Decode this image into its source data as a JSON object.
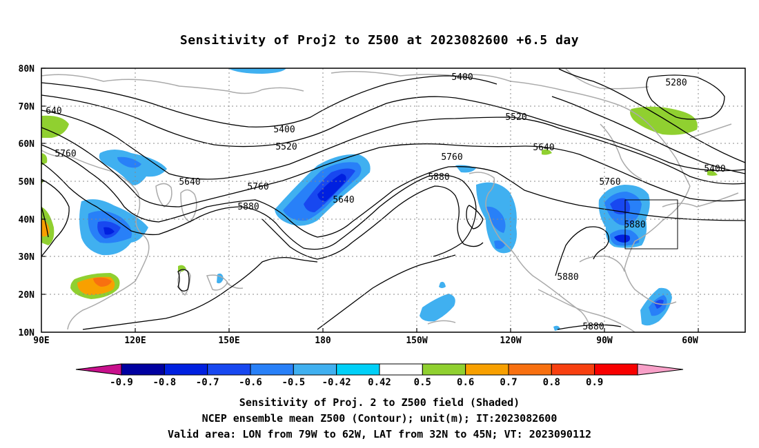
{
  "title": "Sensitivity of Proj2 to Z500 at 2023082600 +6.5 day",
  "map": {
    "lat_labels": [
      "80N",
      "70N",
      "60N",
      "50N",
      "40N",
      "30N",
      "20N",
      "10N"
    ],
    "lon_labels": [
      "90E",
      "120E",
      "150E",
      "180",
      "150W",
      "120W",
      "90W",
      "60W"
    ],
    "contour_labels": [
      "5400",
      "5280",
      "5520",
      "5400",
      "5520",
      "5640",
      "5400",
      "5760",
      "5760",
      "5880",
      "5640",
      "5640",
      "5760",
      "5880",
      "5760",
      "5880",
      "5880",
      "5880",
      "640"
    ],
    "colors": {
      "coast": "#aaaaaa",
      "contour": "#000000",
      "grid": "#888888"
    },
    "valid_area_box": "79W-62W, 32N-45N"
  },
  "colorbar": {
    "labels": [
      "-0.9",
      "-0.8",
      "-0.7",
      "-0.6",
      "-0.5",
      "-0.42",
      "0.42",
      "0.5",
      "0.6",
      "0.7",
      "0.8",
      "0.9"
    ],
    "colors": [
      "#c8108c",
      "#0000a0",
      "#0020e0",
      "#1848f0",
      "#2880f8",
      "#40b0f0",
      "#00d0f8",
      "#ffffff",
      "#90d030",
      "#f8a000",
      "#f87010",
      "#f84010",
      "#f80000",
      "#f8a0c8"
    ]
  },
  "caption": {
    "line1": "Sensitivity of Proj. 2 to Z500 field (Shaded)",
    "line2": "NCEP ensemble mean Z500 (Contour); unit(m); IT:2023082600",
    "line3": "Valid area: LON from 79W to 62W, LAT from 32N to 45N; VT: 2023090112"
  }
}
